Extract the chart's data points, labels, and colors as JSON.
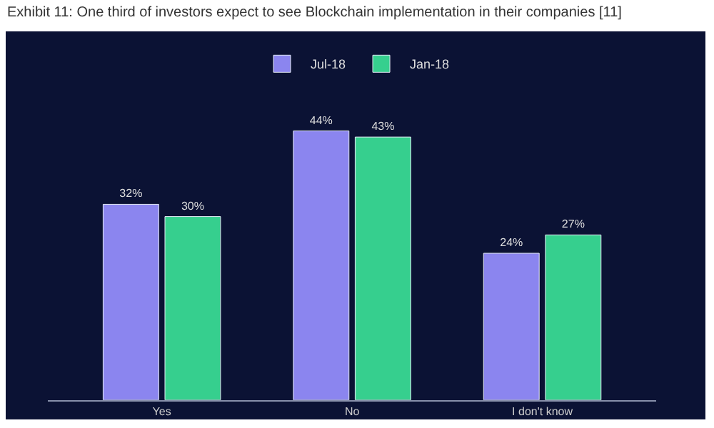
{
  "chart_data": {
    "type": "bar",
    "title": "Exhibit 11: One third of investors expect to see Blockchain implementation in their companies [11]",
    "categories": [
      "Yes",
      "No",
      "I don't know"
    ],
    "series": [
      {
        "name": "Jul-18",
        "color": "#8b85ef",
        "values": [
          32,
          44,
          24
        ],
        "value_labels": [
          "32%",
          "44%",
          "24%"
        ]
      },
      {
        "name": "Jan-18",
        "color": "#36cf8e",
        "values": [
          30,
          43,
          27
        ],
        "value_labels": [
          "30%",
          "43%",
          "27%"
        ]
      }
    ],
    "legend": "top",
    "grid": false
  }
}
